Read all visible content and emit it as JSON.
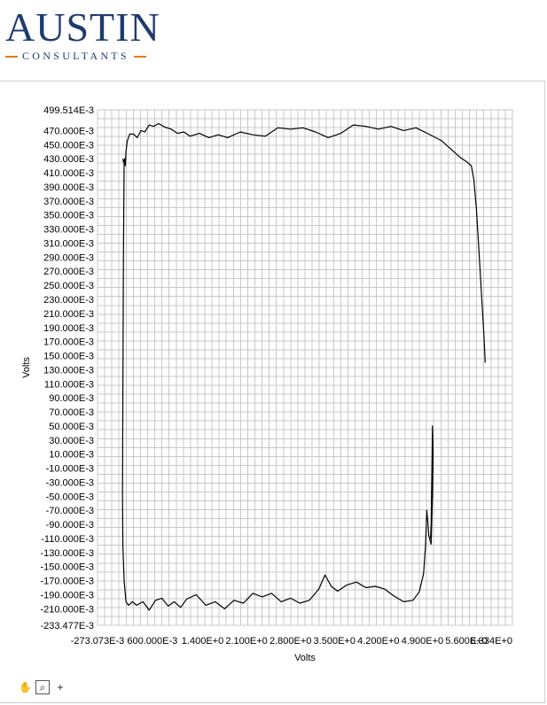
{
  "logo": {
    "main": "AUSTIN",
    "sub": "CONSULTANTS"
  },
  "toolbar": {
    "tools": [
      {
        "icon": "pan-hand-icon",
        "glyph": "✋"
      },
      {
        "icon": "zoom-icon",
        "glyph": "⌕"
      },
      {
        "icon": "crosshair-icon",
        "glyph": "+"
      }
    ]
  },
  "colors": {
    "grid": "#c8c8c8",
    "line": "#000000",
    "logo": "#1f3b6e",
    "accent": "#e07a1f"
  },
  "chart_data": {
    "type": "line",
    "xlabel": "Volts",
    "ylabel": "Volts",
    "xlim": [
      -0.273073,
      6.334
    ],
    "ylim": [
      -0.233477,
      0.499514
    ],
    "grid": true,
    "x_ticks": [
      -0.273073,
      0.6,
      1.4,
      2.1,
      2.8,
      3.5,
      4.2,
      4.9,
      5.6,
      6.334
    ],
    "x_tick_labels": [
      "-273.073E-3",
      "600.000E-3",
      "1.400E+0",
      "2.100E+0",
      "2.800E+0",
      "3.500E+0",
      "4.200E+0",
      "4.900E+0",
      "5.600E+0",
      "6.334E+0"
    ],
    "y_tick_labels": [
      "499.514E-3",
      "470.000E-3",
      "450.000E-3",
      "430.000E-3",
      "410.000E-3",
      "390.000E-3",
      "370.000E-3",
      "350.000E-3",
      "330.000E-3",
      "310.000E-3",
      "290.000E-3",
      "270.000E-3",
      "250.000E-3",
      "230.000E-3",
      "210.000E-3",
      "190.000E-3",
      "170.000E-3",
      "150.000E-3",
      "130.000E-3",
      "110.000E-3",
      "90.000E-3",
      "70.000E-3",
      "50.000E-3",
      "30.000E-3",
      "10.000E-3",
      "-10.000E-3",
      "-30.000E-3",
      "-50.000E-3",
      "-70.000E-3",
      "-90.000E-3",
      "-110.000E-3",
      "-130.000E-3",
      "-150.000E-3",
      "-170.000E-3",
      "-190.000E-3",
      "-210.000E-3",
      "-233.477E-3"
    ],
    "y_ticks": [
      0.499514,
      0.47,
      0.45,
      0.43,
      0.41,
      0.39,
      0.37,
      0.35,
      0.33,
      0.31,
      0.29,
      0.27,
      0.25,
      0.23,
      0.21,
      0.19,
      0.17,
      0.15,
      0.13,
      0.11,
      0.09,
      0.07,
      0.05,
      0.03,
      0.01,
      -0.01,
      -0.03,
      -0.05,
      -0.07,
      -0.09,
      -0.11,
      -0.13,
      -0.15,
      -0.17,
      -0.19,
      -0.21,
      -0.233477
    ],
    "series": [
      {
        "x": [
          0.13,
          0.14,
          0.15,
          0.16,
          0.17,
          0.18,
          0.2,
          0.24,
          0.3,
          0.36,
          0.42,
          0.48,
          0.55,
          0.62,
          0.7,
          0.8,
          0.9,
          1.0,
          1.1,
          1.2,
          1.35,
          1.5,
          1.65,
          1.8,
          2.0,
          2.2,
          2.4,
          2.6,
          2.8,
          3.0,
          3.2,
          3.4,
          3.6,
          3.8,
          4.0,
          4.2,
          4.4,
          4.6,
          4.8,
          5.0,
          5.2,
          5.35,
          5.5,
          5.6,
          5.68,
          5.72,
          5.76,
          5.8,
          5.84,
          5.88,
          5.9
        ],
        "y": [
          0.43,
          0.425,
          0.427,
          0.43,
          0.42,
          0.44,
          0.455,
          0.465,
          0.465,
          0.46,
          0.47,
          0.468,
          0.478,
          0.476,
          0.48,
          0.475,
          0.472,
          0.466,
          0.468,
          0.462,
          0.466,
          0.46,
          0.464,
          0.46,
          0.468,
          0.464,
          0.462,
          0.474,
          0.472,
          0.474,
          0.468,
          0.46,
          0.466,
          0.478,
          0.476,
          0.472,
          0.476,
          0.47,
          0.474,
          0.465,
          0.456,
          0.444,
          0.432,
          0.426,
          0.42,
          0.4,
          0.36,
          0.3,
          0.24,
          0.18,
          0.14
        ]
      },
      {
        "x": [
          0.15,
          0.14,
          0.13,
          0.125,
          0.13,
          0.15,
          0.18,
          0.22,
          0.28,
          0.35,
          0.45,
          0.55,
          0.65,
          0.75,
          0.85,
          0.95,
          1.05,
          1.15,
          1.3,
          1.45,
          1.6,
          1.75,
          1.9,
          2.05,
          2.2,
          2.35,
          2.5,
          2.65,
          2.8,
          2.95,
          3.1,
          3.25,
          3.35,
          3.45,
          3.55,
          3.7,
          3.85,
          4.0,
          4.15,
          4.3,
          4.45,
          4.6,
          4.75,
          4.85,
          4.92,
          4.95,
          4.97,
          4.99,
          5.0,
          5.02,
          5.04,
          5.06,
          5.07,
          5.06,
          5.05,
          5.04,
          5.03
        ],
        "y": [
          0.425,
          0.3,
          0.1,
          -0.05,
          -0.12,
          -0.17,
          -0.2,
          -0.205,
          -0.2,
          -0.205,
          -0.2,
          -0.212,
          -0.198,
          -0.195,
          -0.206,
          -0.2,
          -0.208,
          -0.196,
          -0.19,
          -0.205,
          -0.2,
          -0.21,
          -0.198,
          -0.202,
          -0.188,
          -0.193,
          -0.188,
          -0.2,
          -0.195,
          -0.202,
          -0.198,
          -0.182,
          -0.162,
          -0.178,
          -0.185,
          -0.176,
          -0.172,
          -0.18,
          -0.178,
          -0.182,
          -0.192,
          -0.2,
          -0.198,
          -0.186,
          -0.16,
          -0.12,
          -0.07,
          -0.09,
          -0.105,
          -0.112,
          -0.118,
          -0.05,
          0.01,
          0.05,
          -0.02,
          -0.09,
          -0.11
        ]
      }
    ]
  }
}
